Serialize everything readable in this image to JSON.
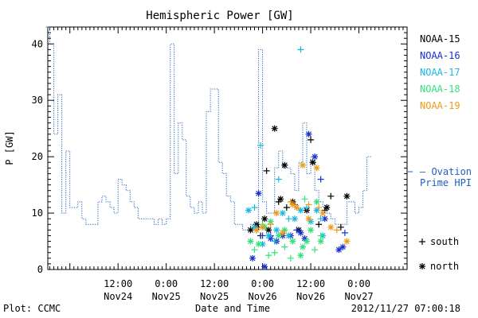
{
  "chart_data": {
    "type": "line",
    "title": "Hemispheric Power [GW]",
    "ylabel": "P [GW]",
    "xlabel": "Date and Time",
    "ylim": [
      0,
      43
    ],
    "yticks": [
      0,
      10,
      20,
      30,
      40
    ],
    "x_unit": "hours from 2012-11-24 00:00 UT",
    "xlim": [
      -5.5,
      84
    ],
    "xticks": [
      {
        "x": 12,
        "time": "12:00",
        "date": "Nov24"
      },
      {
        "x": 24,
        "time": "0:00",
        "date": "Nov25"
      },
      {
        "x": 36,
        "time": "12:00",
        "date": "Nov25"
      },
      {
        "x": 48,
        "time": "0:00",
        "date": "Nov26"
      },
      {
        "x": 60,
        "time": "12:00",
        "date": "Nov26"
      },
      {
        "x": 72,
        "time": "0:00",
        "date": "Nov27"
      }
    ],
    "ovation": {
      "name": "Ovation Prime HPI",
      "label_lines": [
        "— Ovation",
        "Prime HPI"
      ],
      "color": "#1f5fbf",
      "points": [
        [
          -5.5,
          43
        ],
        [
          -4.5,
          40
        ],
        [
          -3.5,
          24
        ],
        [
          -2.5,
          31
        ],
        [
          -1.5,
          10
        ],
        [
          -0.5,
          21
        ],
        [
          0.5,
          11
        ],
        [
          1.5,
          11
        ],
        [
          2.5,
          12
        ],
        [
          3.5,
          9
        ],
        [
          4.5,
          8
        ],
        [
          5.5,
          8
        ],
        [
          6.5,
          8
        ],
        [
          7.5,
          12
        ],
        [
          8.5,
          13
        ],
        [
          9.5,
          12
        ],
        [
          10.5,
          11
        ],
        [
          11.5,
          10
        ],
        [
          12.5,
          16
        ],
        [
          13.5,
          15
        ],
        [
          14.5,
          14
        ],
        [
          15.5,
          12
        ],
        [
          16.5,
          11
        ],
        [
          17.5,
          9
        ],
        [
          18.5,
          9
        ],
        [
          19.5,
          9
        ],
        [
          20.5,
          9
        ],
        [
          21.5,
          8
        ],
        [
          22.5,
          9
        ],
        [
          23.5,
          8
        ],
        [
          24.5,
          9
        ],
        [
          25.5,
          40
        ],
        [
          26.5,
          17
        ],
        [
          27.5,
          26
        ],
        [
          28.5,
          23
        ],
        [
          29.5,
          13
        ],
        [
          30.5,
          11
        ],
        [
          31.5,
          10
        ],
        [
          32.5,
          12
        ],
        [
          33.5,
          10
        ],
        [
          34.5,
          28
        ],
        [
          35.5,
          32
        ],
        [
          36.5,
          32
        ],
        [
          37.5,
          19
        ],
        [
          38.5,
          17
        ],
        [
          39.5,
          13
        ],
        [
          40.5,
          12
        ],
        [
          41.5,
          8
        ],
        [
          42.5,
          8
        ],
        [
          43.5,
          7
        ],
        [
          44.5,
          7
        ],
        [
          45.5,
          8
        ],
        [
          46.5,
          8
        ],
        [
          47.5,
          39
        ],
        [
          48.5,
          12
        ],
        [
          49.5,
          10
        ],
        [
          50.5,
          10
        ],
        [
          51.5,
          18
        ],
        [
          52.5,
          21
        ],
        [
          53.5,
          18
        ],
        [
          54.5,
          18
        ],
        [
          55.5,
          17
        ],
        [
          56.5,
          14
        ],
        [
          57.5,
          19
        ],
        [
          58.5,
          26
        ],
        [
          59.5,
          17
        ],
        [
          60.5,
          20
        ],
        [
          61.5,
          14
        ],
        [
          62.5,
          12
        ],
        [
          63.5,
          11
        ],
        [
          64.5,
          10
        ],
        [
          65.5,
          9
        ],
        [
          66.5,
          8
        ],
        [
          67.5,
          8
        ],
        [
          68.5,
          8
        ],
        [
          69.5,
          12
        ],
        [
          70.5,
          12
        ],
        [
          71.5,
          10
        ],
        [
          72.5,
          11
        ],
        [
          73.5,
          14
        ],
        [
          74.5,
          20
        ]
      ]
    },
    "series": [
      {
        "name": "NOAA-15",
        "color": "#000000",
        "south": [
          [
            47,
            7.5
          ],
          [
            47.5,
            6
          ],
          [
            49,
            17.5
          ],
          [
            52,
            12
          ],
          [
            54,
            11
          ],
          [
            56,
            11.5
          ],
          [
            60,
            23
          ],
          [
            62,
            8
          ],
          [
            63.5,
            10.5
          ],
          [
            65,
            13
          ],
          [
            67.5,
            7.5
          ]
        ],
        "north": [
          [
            45,
            7
          ],
          [
            46.5,
            8
          ],
          [
            48.5,
            9
          ],
          [
            49.5,
            7
          ],
          [
            51,
            25
          ],
          [
            52.5,
            12.5
          ],
          [
            53.5,
            18.5
          ],
          [
            55.5,
            12
          ],
          [
            57,
            7
          ],
          [
            59,
            10.5
          ],
          [
            60.5,
            19
          ],
          [
            64,
            11
          ],
          [
            69,
            13
          ]
        ]
      },
      {
        "name": "NOAA-16",
        "color": "#1a2fd0",
        "south": [
          [
            46.5,
            7
          ],
          [
            48,
            6
          ],
          [
            50,
            6
          ],
          [
            56.5,
            7
          ],
          [
            62.5,
            16
          ],
          [
            68.5,
            6.5
          ]
        ],
        "north": [
          [
            45.5,
            2
          ],
          [
            47,
            13.5
          ],
          [
            48.5,
            0.5
          ],
          [
            50,
            5.5
          ],
          [
            51.5,
            5
          ],
          [
            53,
            6
          ],
          [
            55,
            6
          ],
          [
            57.5,
            6.5
          ],
          [
            58.5,
            5.5
          ],
          [
            59.5,
            24
          ],
          [
            61,
            20
          ],
          [
            63.5,
            9
          ],
          [
            67,
            3.5
          ],
          [
            68,
            4
          ]
        ]
      },
      {
        "name": "NOAA-17",
        "color": "#1ab8e0",
        "south": [
          [
            46,
            11
          ],
          [
            47.5,
            22
          ],
          [
            51,
            5
          ],
          [
            52,
            16
          ],
          [
            54.5,
            9
          ],
          [
            57.5,
            39
          ],
          [
            59,
            11
          ],
          [
            62.5,
            9
          ]
        ],
        "north": [
          [
            44.5,
            10.5
          ],
          [
            46,
            7.5
          ],
          [
            48,
            4.5
          ],
          [
            49.5,
            6
          ],
          [
            51.5,
            7
          ],
          [
            53,
            10
          ],
          [
            54.5,
            6
          ],
          [
            56,
            9
          ],
          [
            57.5,
            10.5
          ],
          [
            60,
            8.5
          ],
          [
            61.5,
            10.5
          ],
          [
            63,
            6
          ]
        ]
      },
      {
        "name": "NOAA-18",
        "color": "#33e07a",
        "south": [
          [
            46,
            3.5
          ],
          [
            48,
            8
          ],
          [
            49.5,
            2.5
          ],
          [
            51,
            3
          ],
          [
            53.5,
            4
          ],
          [
            55,
            2
          ],
          [
            58.5,
            12.5
          ],
          [
            61,
            3.5
          ],
          [
            62.5,
            6
          ]
        ],
        "north": [
          [
            45,
            5
          ],
          [
            47,
            4.5
          ],
          [
            48.5,
            7.5
          ],
          [
            50,
            8.5
          ],
          [
            52,
            6
          ],
          [
            53.5,
            7
          ],
          [
            55.5,
            5
          ],
          [
            57.5,
            2.5
          ],
          [
            58,
            4
          ],
          [
            59,
            5
          ],
          [
            60,
            7
          ],
          [
            61.5,
            12
          ],
          [
            62.5,
            5
          ]
        ]
      },
      {
        "name": "NOAA-19",
        "color": "#f09a1a",
        "south": [
          [
            50,
            8
          ],
          [
            55,
            12
          ],
          [
            59.5,
            11.5
          ],
          [
            62,
            11
          ],
          [
            66.5,
            7
          ]
        ],
        "north": [
          [
            46.5,
            7
          ],
          [
            48,
            7.5
          ],
          [
            51.5,
            10
          ],
          [
            53,
            6.5
          ],
          [
            55.5,
            11.5
          ],
          [
            56.5,
            11
          ],
          [
            58,
            18.5
          ],
          [
            59.5,
            9
          ],
          [
            61.5,
            18
          ],
          [
            63,
            10
          ],
          [
            65,
            7.5
          ],
          [
            69,
            5
          ]
        ]
      }
    ],
    "marker_legend": [
      {
        "symbol": "+",
        "label": "south"
      },
      {
        "symbol": "*",
        "label": "north"
      }
    ]
  },
  "footer": {
    "plot_credit": "Plot: CCMC",
    "timestamp": "2012/11/27 07:00:18"
  }
}
